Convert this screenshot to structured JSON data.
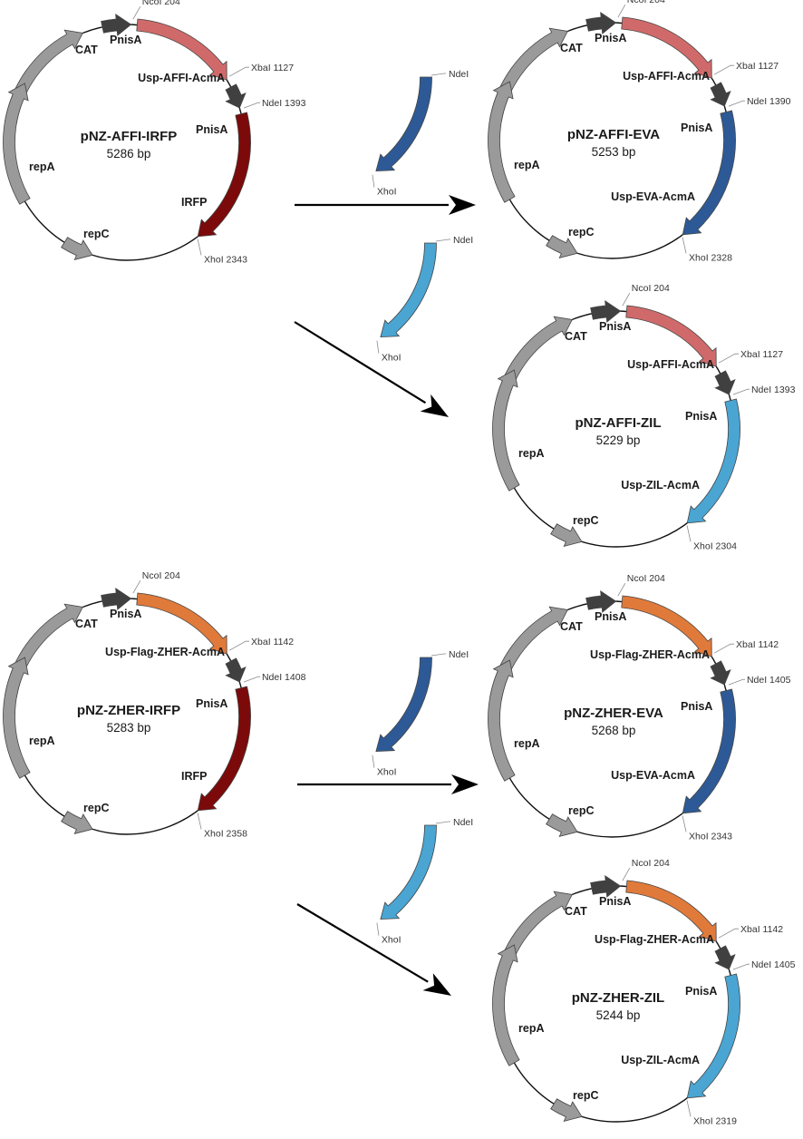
{
  "colors": {
    "gray": "#9a9a9a",
    "dark": "#404040",
    "affi": "#d06a6a",
    "irfp": "#7c0a0a",
    "eva": "#2d5a96",
    "zil": "#4aa5d2",
    "zher": "#e07a3a",
    "arrow": "#000000"
  },
  "plasmids": [
    {
      "name": "pNZ-AFFI-IRFP",
      "size": "5286 bp",
      "cat": "CAT",
      "pnisa1": "PnisA",
      "pnisa2": "PnisA",
      "repA": "repA",
      "repC": "repC",
      "fusion": "Usp-AFFI-AcmA",
      "insert": "IRFP",
      "insert_color": "irfp",
      "binder_color": "affi",
      "ncoi": "NcoI 204",
      "xbai": "XbaI 1127",
      "ndei": "NdeI 1393",
      "xhoi": "XhoI 2343"
    },
    {
      "name": "pNZ-AFFI-EVA",
      "size": "5253 bp",
      "cat": "CAT",
      "pnisa1": "PnisA",
      "pnisa2": "PnisA",
      "repA": "repA",
      "repC": "repC",
      "fusion": "Usp-AFFI-AcmA",
      "insert": "Usp-EVA-AcmA",
      "insert_color": "eva",
      "binder_color": "affi",
      "ncoi": "NcoI 204",
      "xbai": "XbaI 1127",
      "ndei": "NdeI 1390",
      "xhoi": "XhoI 2328"
    },
    {
      "name": "pNZ-AFFI-ZIL",
      "size": "5229 bp",
      "cat": "CAT",
      "pnisa1": "PnisA",
      "pnisa2": "PnisA",
      "repA": "repA",
      "repC": "repC",
      "fusion": "Usp-AFFI-AcmA",
      "insert": "Usp-ZIL-AcmA",
      "insert_color": "zil",
      "binder_color": "affi",
      "ncoi": "NcoI 204",
      "xbai": "XbaI 1127",
      "ndei": "NdeI 1393",
      "xhoi": "XhoI 2304"
    },
    {
      "name": "pNZ-ZHER-IRFP",
      "size": "5283 bp",
      "cat": "CAT",
      "pnisa1": "PnisA",
      "pnisa2": "PnisA",
      "repA": "repA",
      "repC": "repC",
      "fusion": "Usp-Flag-ZHER-AcmA",
      "insert": "IRFP",
      "insert_color": "irfp",
      "binder_color": "zher",
      "ncoi": "NcoI 204",
      "xbai": "XbaI 1142",
      "ndei": "NdeI 1408",
      "xhoi": "XhoI 2358"
    },
    {
      "name": "pNZ-ZHER-EVA",
      "size": "5268 bp",
      "cat": "CAT",
      "pnisa1": "PnisA",
      "pnisa2": "PnisA",
      "repA": "repA",
      "repC": "repC",
      "fusion": "Usp-Flag-ZHER-AcmA",
      "insert": "Usp-EVA-AcmA",
      "insert_color": "eva",
      "binder_color": "zher",
      "ncoi": "NcoI 204",
      "xbai": "XbaI 1142",
      "ndei": "NdeI 1405",
      "xhoi": "XhoI 2343"
    },
    {
      "name": "pNZ-ZHER-ZIL",
      "size": "5244 bp",
      "cat": "CAT",
      "pnisa1": "PnisA",
      "pnisa2": "PnisA",
      "repA": "repA",
      "repC": "repC",
      "fusion": "Usp-Flag-ZHER-AcmA",
      "insert": "Usp-ZIL-AcmA",
      "insert_color": "zil",
      "binder_color": "zher",
      "ncoi": "NcoI 204",
      "xbai": "XbaI 1142",
      "ndei": "NdeI 1405",
      "xhoi": "XhoI 2319"
    }
  ],
  "fragments": [
    {
      "color": "eva",
      "ndei": "NdeI",
      "xhoi": "XhoI"
    },
    {
      "color": "zil",
      "ndei": "NdeI",
      "xhoi": "XhoI"
    },
    {
      "color": "eva",
      "ndei": "NdeI",
      "xhoi": "XhoI"
    },
    {
      "color": "zil",
      "ndei": "NdeI",
      "xhoi": "XhoI"
    }
  ]
}
